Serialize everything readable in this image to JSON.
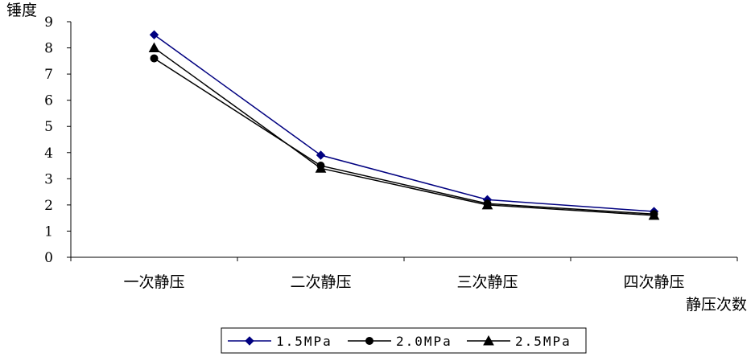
{
  "chart_data": {
    "type": "line",
    "ylabel": "锤度",
    "xlabel": "静压次数",
    "categories": [
      "一次静压",
      "二次静压",
      "三次静压",
      "四次静压"
    ],
    "ylim": [
      0,
      9
    ],
    "yticks": [
      "0",
      "1",
      "2",
      "3",
      "4",
      "5",
      "6",
      "7",
      "8",
      "9"
    ],
    "grid": false,
    "legend_position": "bottom",
    "series": [
      {
        "name": "1.5MPa",
        "values": [
          8.5,
          3.9,
          2.2,
          1.75
        ],
        "color": "#000080",
        "marker": "diamond"
      },
      {
        "name": "2.0MPa",
        "values": [
          7.6,
          3.5,
          2.05,
          1.65
        ],
        "color": "#000000",
        "marker": "circle"
      },
      {
        "name": "2.5MPa",
        "values": [
          8.0,
          3.4,
          2.0,
          1.6
        ],
        "color": "#000000",
        "marker": "triangle"
      }
    ]
  }
}
